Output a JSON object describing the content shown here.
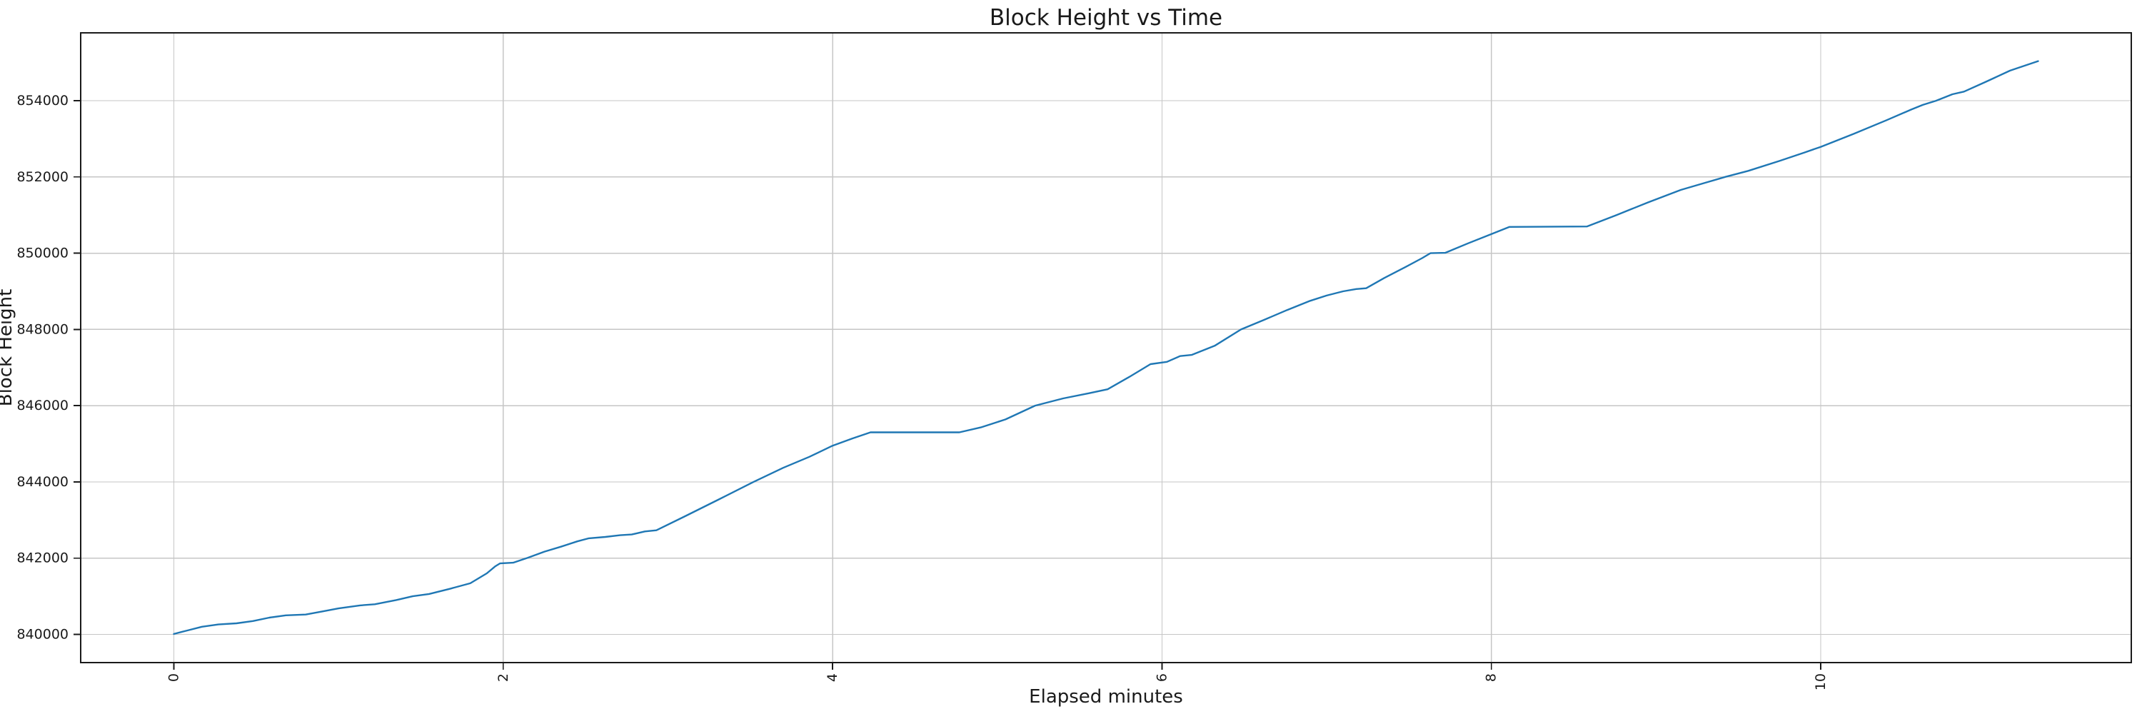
{
  "chart_data": {
    "type": "line",
    "title": "Block Height vs Time",
    "xlabel": "Elapsed minutes",
    "ylabel": "Block Height",
    "xlim": [
      -0.566,
      11.886
    ],
    "ylim": [
      839259,
      855781
    ],
    "grid": true,
    "legend_position": "none",
    "xticks": [
      0,
      2,
      4,
      6,
      8,
      10
    ],
    "xtick_labels": [
      "0",
      "2",
      "4",
      "6",
      "8",
      "10"
    ],
    "xtick_rotation_deg": 90,
    "yticks": [
      840000,
      842000,
      844000,
      846000,
      848000,
      850000,
      852000,
      854000
    ],
    "ytick_labels": [
      "840000",
      "842000",
      "844000",
      "846000",
      "848000",
      "850000",
      "852000",
      "854000"
    ],
    "series": [
      {
        "name": "block-height",
        "color": "#1f77b4",
        "x": [
          0.0,
          0.08,
          0.17,
          0.27,
          0.38,
          0.48,
          0.58,
          0.68,
          0.8,
          0.9,
          1.0,
          1.13,
          1.22,
          1.35,
          1.45,
          1.55,
          1.68,
          1.8,
          1.9,
          1.95,
          1.98,
          2.06,
          2.15,
          2.25,
          2.35,
          2.45,
          2.52,
          2.62,
          2.71,
          2.78,
          2.86,
          2.93,
          3.1,
          3.3,
          3.52,
          3.7,
          3.86,
          4.0,
          4.12,
          4.23,
          4.77,
          4.9,
          5.05,
          5.23,
          5.4,
          5.55,
          5.67,
          5.8,
          5.93,
          6.03,
          6.11,
          6.18,
          6.32,
          6.48,
          6.62,
          6.76,
          6.9,
          7.0,
          7.1,
          7.18,
          7.24,
          7.35,
          7.48,
          7.58,
          7.63,
          7.72,
          7.86,
          8.0,
          8.11,
          8.58,
          8.76,
          8.95,
          9.15,
          9.3,
          9.42,
          9.56,
          9.75,
          9.9,
          10.0,
          10.2,
          10.4,
          10.55,
          10.62,
          10.7,
          10.8,
          10.87,
          11.0,
          11.15,
          11.32
        ],
        "y": [
          840010,
          840100,
          840200,
          840260,
          840290,
          840350,
          840440,
          840500,
          840520,
          840600,
          840680,
          840760,
          840790,
          840900,
          841000,
          841060,
          841200,
          841340,
          841600,
          841780,
          841860,
          841880,
          842010,
          842170,
          842300,
          842440,
          842520,
          842555,
          842600,
          842620,
          842700,
          842730,
          843090,
          843520,
          844000,
          844370,
          844660,
          844950,
          845140,
          845300,
          845300,
          845430,
          845640,
          846000,
          846190,
          846320,
          846430,
          846750,
          847090,
          847150,
          847300,
          847330,
          847570,
          848000,
          848250,
          848510,
          848750,
          848890,
          849000,
          849060,
          849080,
          849350,
          849640,
          849870,
          850000,
          850010,
          850260,
          850500,
          850690,
          850700,
          851000,
          851330,
          851660,
          851850,
          852000,
          852160,
          852420,
          852640,
          852790,
          853130,
          853490,
          853770,
          853890,
          854000,
          854170,
          854240,
          854490,
          854790,
          855040
        ]
      }
    ]
  },
  "colors": {
    "background": "#ffffff",
    "line": "#1f77b4",
    "grid": "#c6c6c6",
    "spine": "#1a1a1a",
    "text": "#1a1a1a"
  }
}
